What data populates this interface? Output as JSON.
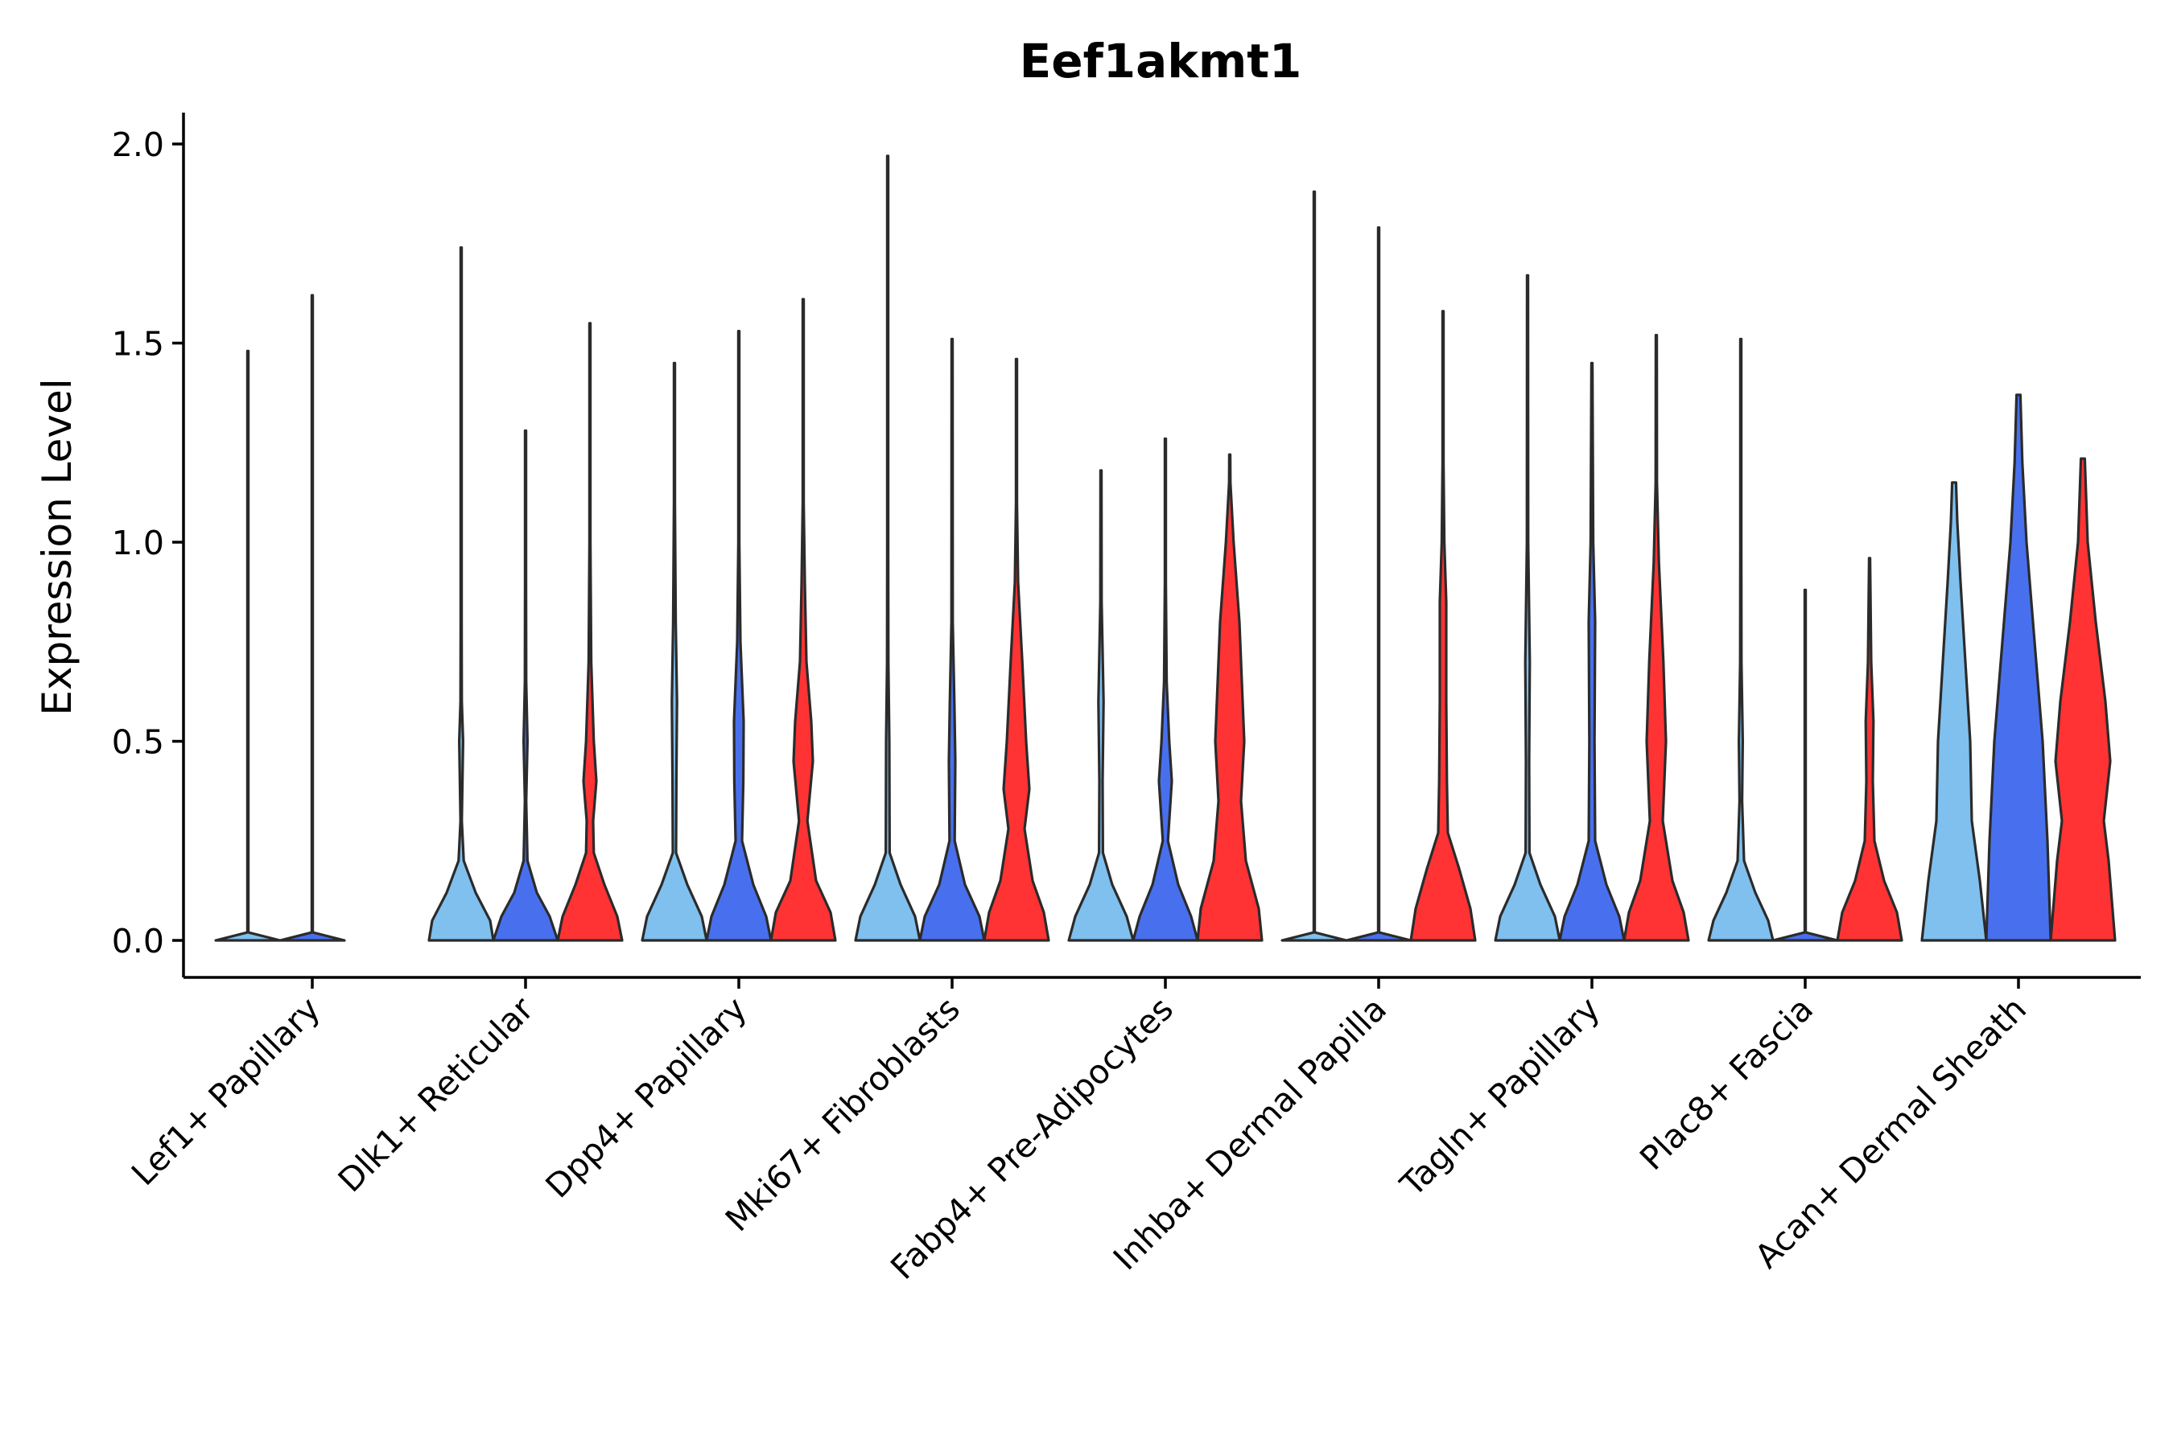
{
  "chart_data": {
    "type": "violin",
    "title": "Eef1akmt1",
    "xlabel": "",
    "ylabel": "Expression Level",
    "ylim": [
      -0.1,
      2.08
    ],
    "yticks": [
      0.0,
      0.5,
      1.0,
      1.5,
      2.0
    ],
    "ytick_labels": [
      "0.0",
      "0.5",
      "1.0",
      "1.5",
      "2.0"
    ],
    "groups_per_category": 3,
    "series_colors": [
      "#7fc0ee",
      "#4870ee",
      "#ff3333"
    ],
    "categories": [
      "Lef1+ Papillary",
      "Dlk1+ Reticular",
      "Dpp4+ Papillary",
      "Mki67+ Fibroblasts",
      "Fabp4+ Pre-Adipocytes",
      "Inhba+ Dermal Papilla",
      "Tagln+ Papillary",
      "Plac8+ Fascia",
      "Acan+ Dermal Sheath"
    ],
    "violins": [
      {
        "category": 0,
        "group": 0,
        "max": 1.48,
        "profile": [
          [
            0,
            1.0
          ],
          [
            0.02,
            0.0
          ],
          [
            1.48,
            0.0
          ]
        ]
      },
      {
        "category": 0,
        "group": 1,
        "max": 1.62,
        "profile": [
          [
            0,
            1.0
          ],
          [
            0.02,
            0.0
          ],
          [
            1.62,
            0.0
          ]
        ]
      },
      {
        "category": 1,
        "group": 0,
        "max": 1.74,
        "profile": [
          [
            0,
            1.0
          ],
          [
            0.05,
            0.9
          ],
          [
            0.12,
            0.45
          ],
          [
            0.2,
            0.08
          ],
          [
            0.3,
            0.02
          ],
          [
            0.5,
            0.06
          ],
          [
            0.6,
            0.02
          ],
          [
            0.8,
            0.0
          ],
          [
            1.74,
            0.0
          ]
        ]
      },
      {
        "category": 1,
        "group": 1,
        "max": 1.28,
        "profile": [
          [
            0,
            1.0
          ],
          [
            0.06,
            0.75
          ],
          [
            0.12,
            0.35
          ],
          [
            0.2,
            0.06
          ],
          [
            0.35,
            0.02
          ],
          [
            0.5,
            0.06
          ],
          [
            0.65,
            0.02
          ],
          [
            0.9,
            0.0
          ],
          [
            1.28,
            0.0
          ]
        ]
      },
      {
        "category": 1,
        "group": 2,
        "max": 1.55,
        "profile": [
          [
            0,
            1.0
          ],
          [
            0.06,
            0.85
          ],
          [
            0.14,
            0.45
          ],
          [
            0.22,
            0.12
          ],
          [
            0.3,
            0.1
          ],
          [
            0.4,
            0.2
          ],
          [
            0.5,
            0.12
          ],
          [
            0.7,
            0.04
          ],
          [
            1.0,
            0.01
          ],
          [
            1.55,
            0.0
          ]
        ]
      },
      {
        "category": 2,
        "group": 0,
        "max": 1.45,
        "profile": [
          [
            0,
            1.0
          ],
          [
            0.06,
            0.85
          ],
          [
            0.14,
            0.4
          ],
          [
            0.22,
            0.05
          ],
          [
            0.4,
            0.06
          ],
          [
            0.6,
            0.08
          ],
          [
            0.8,
            0.04
          ],
          [
            1.1,
            0.01
          ],
          [
            1.45,
            0.0
          ]
        ]
      },
      {
        "category": 2,
        "group": 1,
        "max": 1.53,
        "profile": [
          [
            0,
            1.0
          ],
          [
            0.06,
            0.85
          ],
          [
            0.14,
            0.45
          ],
          [
            0.25,
            0.1
          ],
          [
            0.4,
            0.14
          ],
          [
            0.55,
            0.15
          ],
          [
            0.75,
            0.05
          ],
          [
            1.0,
            0.01
          ],
          [
            1.53,
            0.0
          ]
        ]
      },
      {
        "category": 2,
        "group": 2,
        "max": 1.61,
        "profile": [
          [
            0,
            1.0
          ],
          [
            0.07,
            0.85
          ],
          [
            0.15,
            0.4
          ],
          [
            0.3,
            0.13
          ],
          [
            0.45,
            0.3
          ],
          [
            0.55,
            0.25
          ],
          [
            0.7,
            0.1
          ],
          [
            0.9,
            0.05
          ],
          [
            1.1,
            0.01
          ],
          [
            1.61,
            0.0
          ]
        ]
      },
      {
        "category": 3,
        "group": 0,
        "max": 1.97,
        "profile": [
          [
            0,
            1.0
          ],
          [
            0.06,
            0.85
          ],
          [
            0.14,
            0.4
          ],
          [
            0.22,
            0.06
          ],
          [
            0.5,
            0.05
          ],
          [
            0.7,
            0.02
          ],
          [
            1.0,
            0.01
          ],
          [
            1.97,
            0.0
          ]
        ]
      },
      {
        "category": 3,
        "group": 1,
        "max": 1.51,
        "profile": [
          [
            0,
            1.0
          ],
          [
            0.06,
            0.85
          ],
          [
            0.14,
            0.4
          ],
          [
            0.25,
            0.08
          ],
          [
            0.45,
            0.1
          ],
          [
            0.6,
            0.07
          ],
          [
            0.8,
            0.02
          ],
          [
            1.51,
            0.0
          ]
        ]
      },
      {
        "category": 3,
        "group": 2,
        "max": 1.46,
        "profile": [
          [
            0,
            1.0
          ],
          [
            0.07,
            0.85
          ],
          [
            0.15,
            0.5
          ],
          [
            0.28,
            0.25
          ],
          [
            0.38,
            0.4
          ],
          [
            0.5,
            0.3
          ],
          [
            0.7,
            0.18
          ],
          [
            0.9,
            0.05
          ],
          [
            1.1,
            0.01
          ],
          [
            1.46,
            0.0
          ]
        ]
      },
      {
        "category": 4,
        "group": 0,
        "max": 1.18,
        "profile": [
          [
            0,
            1.0
          ],
          [
            0.06,
            0.8
          ],
          [
            0.14,
            0.35
          ],
          [
            0.22,
            0.06
          ],
          [
            0.4,
            0.05
          ],
          [
            0.6,
            0.08
          ],
          [
            0.85,
            0.02
          ],
          [
            1.18,
            0.0
          ]
        ]
      },
      {
        "category": 4,
        "group": 1,
        "max": 1.26,
        "profile": [
          [
            0,
            1.0
          ],
          [
            0.06,
            0.8
          ],
          [
            0.14,
            0.4
          ],
          [
            0.25,
            0.08
          ],
          [
            0.4,
            0.2
          ],
          [
            0.5,
            0.12
          ],
          [
            0.65,
            0.04
          ],
          [
            0.9,
            0.01
          ],
          [
            1.26,
            0.0
          ]
        ]
      },
      {
        "category": 4,
        "group": 2,
        "max": 1.22,
        "profile": [
          [
            0,
            1.0
          ],
          [
            0.08,
            0.9
          ],
          [
            0.2,
            0.5
          ],
          [
            0.35,
            0.35
          ],
          [
            0.5,
            0.45
          ],
          [
            0.6,
            0.4
          ],
          [
            0.8,
            0.3
          ],
          [
            1.0,
            0.12
          ],
          [
            1.15,
            0.02
          ],
          [
            1.22,
            0.0
          ]
        ]
      },
      {
        "category": 5,
        "group": 0,
        "max": 1.88,
        "profile": [
          [
            0,
            1.0
          ],
          [
            0.02,
            0.0
          ],
          [
            1.88,
            0.0
          ]
        ]
      },
      {
        "category": 5,
        "group": 1,
        "max": 1.79,
        "profile": [
          [
            0,
            1.0
          ],
          [
            0.02,
            0.0
          ],
          [
            1.79,
            0.0
          ]
        ]
      },
      {
        "category": 5,
        "group": 2,
        "max": 1.58,
        "profile": [
          [
            0,
            1.0
          ],
          [
            0.08,
            0.85
          ],
          [
            0.18,
            0.5
          ],
          [
            0.27,
            0.15
          ],
          [
            0.4,
            0.12
          ],
          [
            0.6,
            0.1
          ],
          [
            0.85,
            0.1
          ],
          [
            1.0,
            0.04
          ],
          [
            1.2,
            0.01
          ],
          [
            1.58,
            0.0
          ]
        ]
      },
      {
        "category": 6,
        "group": 0,
        "max": 1.67,
        "profile": [
          [
            0,
            1.0
          ],
          [
            0.06,
            0.85
          ],
          [
            0.14,
            0.4
          ],
          [
            0.22,
            0.06
          ],
          [
            0.45,
            0.05
          ],
          [
            0.7,
            0.07
          ],
          [
            1.0,
            0.02
          ],
          [
            1.67,
            0.0
          ]
        ]
      },
      {
        "category": 6,
        "group": 1,
        "max": 1.45,
        "profile": [
          [
            0,
            1.0
          ],
          [
            0.06,
            0.85
          ],
          [
            0.14,
            0.45
          ],
          [
            0.25,
            0.1
          ],
          [
            0.5,
            0.08
          ],
          [
            0.8,
            0.1
          ],
          [
            1.0,
            0.04
          ],
          [
            1.45,
            0.0
          ]
        ]
      },
      {
        "category": 6,
        "group": 2,
        "max": 1.52,
        "profile": [
          [
            0,
            1.0
          ],
          [
            0.07,
            0.85
          ],
          [
            0.15,
            0.5
          ],
          [
            0.3,
            0.2
          ],
          [
            0.5,
            0.3
          ],
          [
            0.7,
            0.22
          ],
          [
            0.95,
            0.08
          ],
          [
            1.15,
            0.02
          ],
          [
            1.52,
            0.0
          ]
        ]
      },
      {
        "category": 7,
        "group": 0,
        "max": 1.51,
        "profile": [
          [
            0,
            1.0
          ],
          [
            0.05,
            0.85
          ],
          [
            0.12,
            0.45
          ],
          [
            0.2,
            0.1
          ],
          [
            0.35,
            0.04
          ],
          [
            0.5,
            0.06
          ],
          [
            0.7,
            0.02
          ],
          [
            1.0,
            0.0
          ],
          [
            1.51,
            0.0
          ]
        ]
      },
      {
        "category": 7,
        "group": 1,
        "max": 0.88,
        "profile": [
          [
            0,
            1.0
          ],
          [
            0.02,
            0.0
          ],
          [
            0.88,
            0.0
          ]
        ]
      },
      {
        "category": 7,
        "group": 2,
        "max": 0.96,
        "profile": [
          [
            0,
            1.0
          ],
          [
            0.07,
            0.85
          ],
          [
            0.15,
            0.45
          ],
          [
            0.25,
            0.15
          ],
          [
            0.4,
            0.1
          ],
          [
            0.55,
            0.12
          ],
          [
            0.7,
            0.05
          ],
          [
            0.96,
            0.0
          ]
        ]
      },
      {
        "category": 8,
        "group": 0,
        "max": 1.15,
        "profile": [
          [
            0,
            1.0
          ],
          [
            0.15,
            0.8
          ],
          [
            0.3,
            0.55
          ],
          [
            0.5,
            0.5
          ],
          [
            0.7,
            0.35
          ],
          [
            0.9,
            0.2
          ],
          [
            1.05,
            0.1
          ],
          [
            1.15,
            0.06
          ]
        ]
      },
      {
        "category": 8,
        "group": 1,
        "max": 1.37,
        "profile": [
          [
            0,
            1.0
          ],
          [
            0.25,
            0.9
          ],
          [
            0.5,
            0.75
          ],
          [
            0.75,
            0.5
          ],
          [
            1.0,
            0.25
          ],
          [
            1.2,
            0.12
          ],
          [
            1.37,
            0.06
          ]
        ]
      },
      {
        "category": 8,
        "group": 2,
        "max": 1.21,
        "profile": [
          [
            0,
            1.0
          ],
          [
            0.2,
            0.8
          ],
          [
            0.3,
            0.65
          ],
          [
            0.45,
            0.85
          ],
          [
            0.6,
            0.7
          ],
          [
            0.8,
            0.4
          ],
          [
            1.0,
            0.15
          ],
          [
            1.21,
            0.06
          ]
        ]
      }
    ]
  }
}
